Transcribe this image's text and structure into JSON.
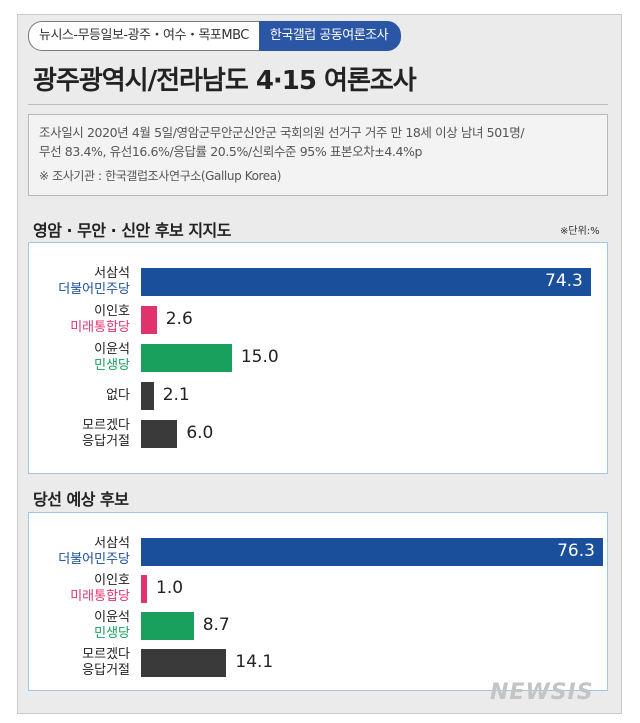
{
  "header": {
    "tab_left": "뉴시스-무등일보-광주・여수・목포MBC",
    "tab_right": "한국갤럽 공동여론조사",
    "title": "광주광역시/전라남도 4·15 여론조사"
  },
  "info": {
    "line1": "조사일시 2020년 4월 5일/영암군무안군신안군 국회의원 선거구 거주 만 18세 이상 남녀 501명/",
    "line2": "무선 83.4%, 유선16.6%/응답률 20.5%/신뢰수준 95% 표본오차±4.4%p",
    "source": "※ 조사기관 : 한국갤럽조사연구소(Gallup Korea)"
  },
  "colors": {
    "democratic": "#1a4f9c",
    "future_united": "#e0336e",
    "minsaeng": "#18a05c",
    "other": "#3a3a3a"
  },
  "chart_data": [
    {
      "type": "bar",
      "title": "영암 · 무안 · 신안 후보 지지도",
      "unit": "※단위:%",
      "categories": [
        {
          "name": "서삼석",
          "party": "더불어민주당",
          "color_key": "democratic"
        },
        {
          "name": "이인호",
          "party": "미래통합당",
          "color_key": "future_united"
        },
        {
          "name": "이윤석",
          "party": "민생당",
          "color_key": "minsaeng"
        },
        {
          "name": "없다",
          "party": "",
          "color_key": "other"
        },
        {
          "name": "모르겠다",
          "party": "응답거절",
          "color_key": "other"
        }
      ],
      "values": [
        74.3,
        2.6,
        15.0,
        2.1,
        6.0
      ],
      "value_labels": [
        "74.3",
        "2.6",
        "15.0",
        "2.1",
        "6.0"
      ]
    },
    {
      "type": "bar",
      "title": "당선 예상 후보",
      "categories": [
        {
          "name": "서삼석",
          "party": "더불어민주당",
          "color_key": "democratic"
        },
        {
          "name": "이인호",
          "party": "미래통합당",
          "color_key": "future_united"
        },
        {
          "name": "이윤석",
          "party": "민생당",
          "color_key": "minsaeng"
        },
        {
          "name": "모르겠다",
          "party": "응답거절",
          "color_key": "other"
        }
      ],
      "values": [
        76.3,
        1.0,
        8.7,
        14.1
      ],
      "value_labels": [
        "76.3",
        "1.0",
        "8.7",
        "14.1"
      ]
    }
  ],
  "watermark": "NEWSIS"
}
